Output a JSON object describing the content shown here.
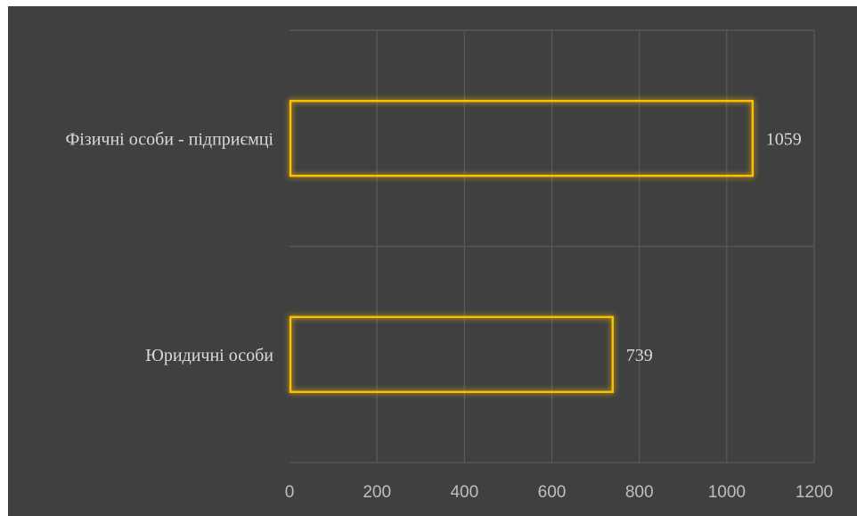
{
  "chart_data": {
    "type": "bar",
    "orientation": "horizontal",
    "categories": [
      "Фізичні особи - підприємці",
      "Юридичні особи"
    ],
    "values": [
      1059,
      739
    ],
    "data_labels": [
      "1059",
      "739"
    ],
    "xlim": [
      0,
      1200
    ],
    "x_ticks": [
      0,
      200,
      400,
      600,
      800,
      1000,
      1200
    ],
    "x_tick_labels": [
      "0",
      "200",
      "400",
      "600",
      "800",
      "1000",
      "1200"
    ],
    "grid": true,
    "legend": "none",
    "title": "",
    "xlabel": "",
    "ylabel": ""
  },
  "colors": {
    "background": "#404040",
    "page": "#ffffff",
    "bar_outline": "#ffc000",
    "bar_glow": "#ffd21a",
    "gridline": "#5a5a5a",
    "text": "#d9d9d9"
  }
}
